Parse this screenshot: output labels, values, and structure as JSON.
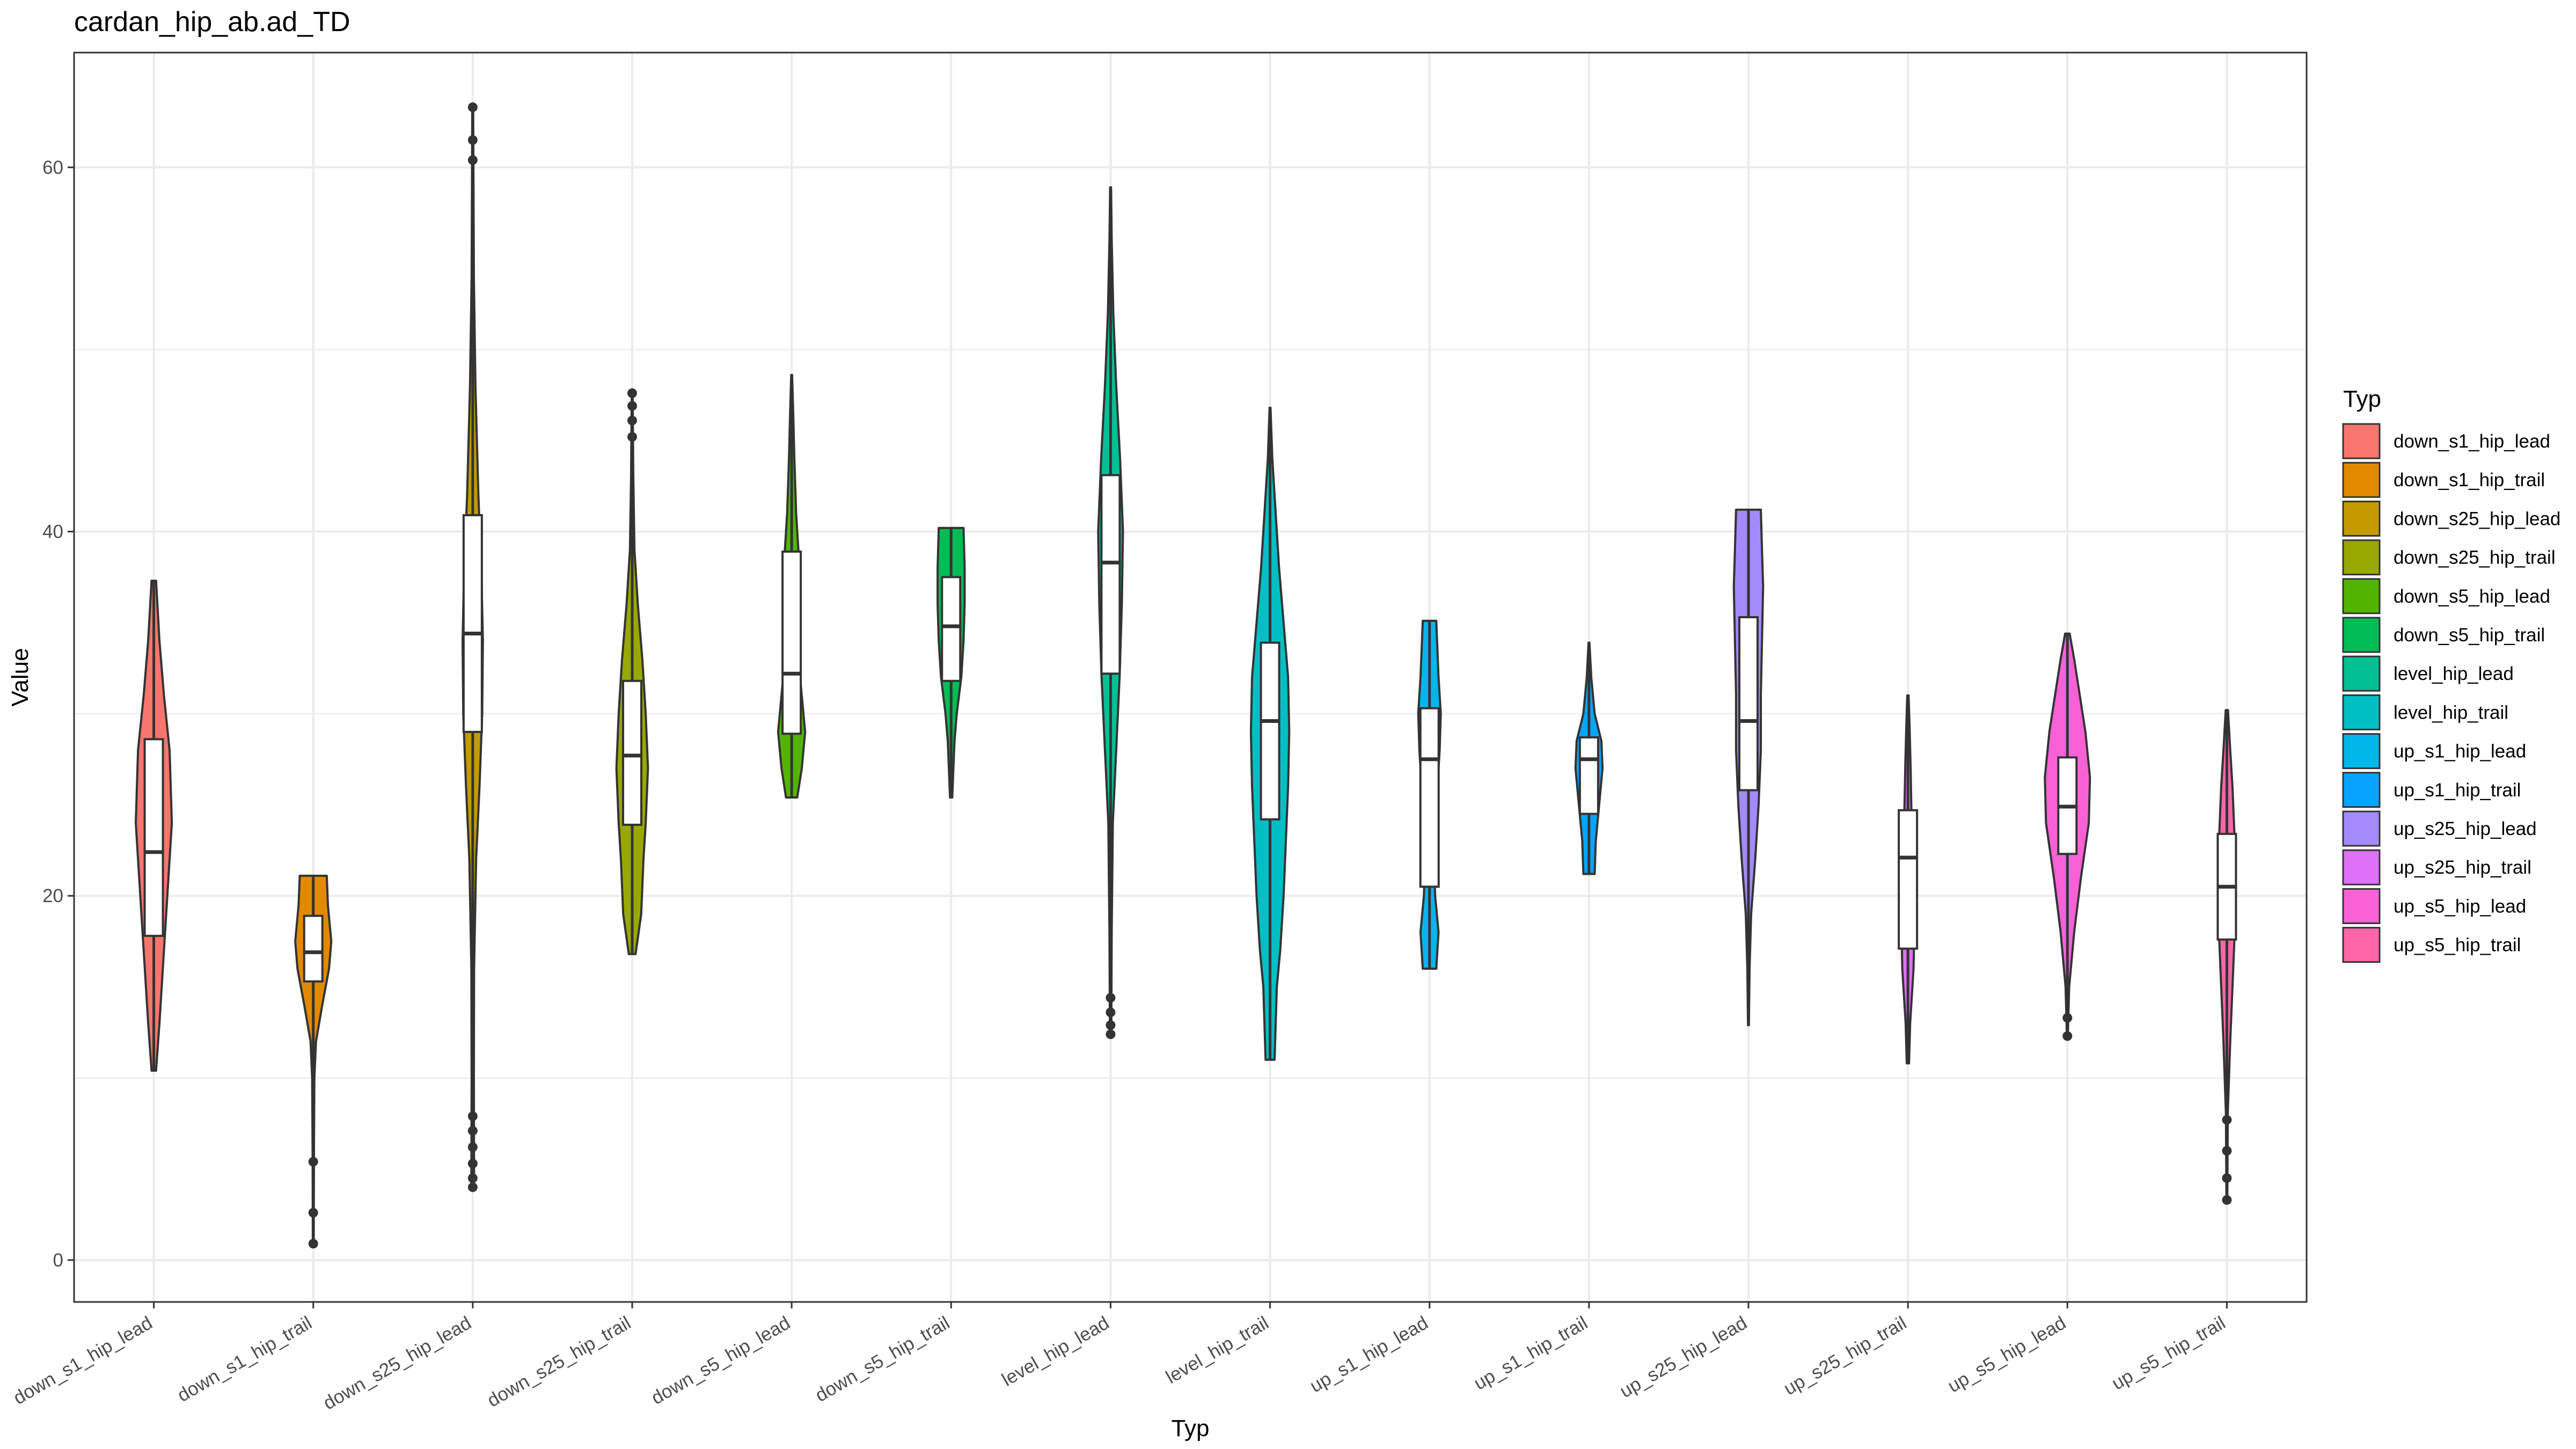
{
  "chart_data": {
    "type": "violin",
    "title": "cardan_hip_ab.ad_TD",
    "xlabel": "Typ",
    "ylabel": "Value",
    "ylim": [
      -2.3,
      66.3
    ],
    "yticks": [
      0,
      20,
      40,
      60
    ],
    "grid": true,
    "legend_title": "Typ",
    "legend_position": "right",
    "categories": [
      "down_s1_hip_lead",
      "down_s1_hip_trail",
      "down_s25_hip_lead",
      "down_s25_hip_trail",
      "down_s5_hip_lead",
      "down_s5_hip_trail",
      "level_hip_lead",
      "level_hip_trail",
      "up_s1_hip_lead",
      "up_s1_hip_trail",
      "up_s25_hip_lead",
      "up_s25_hip_trail",
      "up_s5_hip_lead",
      "up_s5_hip_trail"
    ],
    "colors": [
      "#F8766D",
      "#E38900",
      "#C49A00",
      "#99A800",
      "#53B400",
      "#00BC56",
      "#00C094",
      "#00BFC4",
      "#00B6EB",
      "#06A4FF",
      "#A58AFF",
      "#DF70F8",
      "#FB61D7",
      "#FF66A8"
    ],
    "series": [
      {
        "name": "down_s1_hip_lead",
        "min": 10.4,
        "max": 37.3,
        "q1": 17.8,
        "median": 22.4,
        "q3": 28.6,
        "outliers": [],
        "density": [
          [
            10.4,
            0.1
          ],
          [
            13,
            0.25
          ],
          [
            16,
            0.4
          ],
          [
            20,
            0.6
          ],
          [
            24,
            0.8
          ],
          [
            28,
            0.7
          ],
          [
            31,
            0.45
          ],
          [
            34,
            0.25
          ],
          [
            37.3,
            0.1
          ]
        ]
      },
      {
        "name": "down_s1_hip_trail",
        "min": 0.9,
        "max": 21.1,
        "q1": 15.3,
        "median": 16.9,
        "q3": 18.9,
        "outliers": [
          0.9,
          2.6,
          5.4
        ],
        "density": [
          [
            0.9,
            0.02
          ],
          [
            6,
            0.03
          ],
          [
            10,
            0.05
          ],
          [
            12,
            0.12
          ],
          [
            14,
            0.4
          ],
          [
            16,
            0.7
          ],
          [
            17.5,
            0.8
          ],
          [
            19.5,
            0.65
          ],
          [
            21.1,
            0.6
          ]
        ]
      },
      {
        "name": "down_s25_hip_lead",
        "min": 4.0,
        "max": 63.3,
        "q1": 29.0,
        "median": 34.4,
        "q3": 40.9,
        "outliers": [
          4.0,
          4.5,
          5.3,
          6.2,
          7.1,
          7.9,
          60.4,
          61.5,
          63.3
        ],
        "density": [
          [
            4,
            0.06
          ],
          [
            10,
            0.05
          ],
          [
            16,
            0.06
          ],
          [
            22,
            0.15
          ],
          [
            26,
            0.3
          ],
          [
            30,
            0.42
          ],
          [
            34,
            0.45
          ],
          [
            38,
            0.38
          ],
          [
            42,
            0.25
          ],
          [
            48,
            0.12
          ],
          [
            54,
            0.05
          ],
          [
            63.3,
            0.02
          ]
        ]
      },
      {
        "name": "down_s25_hip_trail",
        "min": 16.8,
        "max": 47.6,
        "q1": 23.9,
        "median": 27.7,
        "q3": 31.8,
        "outliers": [
          45.2,
          46.1,
          46.9,
          47.6
        ],
        "density": [
          [
            16.8,
            0.15
          ],
          [
            19,
            0.4
          ],
          [
            22,
            0.5
          ],
          [
            24,
            0.6
          ],
          [
            27,
            0.7
          ],
          [
            30,
            0.6
          ],
          [
            33,
            0.45
          ],
          [
            36,
            0.25
          ],
          [
            39,
            0.1
          ],
          [
            43,
            0.05
          ],
          [
            47.6,
            0.02
          ]
        ]
      },
      {
        "name": "down_s5_hip_lead",
        "min": 25.4,
        "max": 48.6,
        "q1": 28.9,
        "median": 32.2,
        "q3": 38.9,
        "outliers": [],
        "density": [
          [
            25.4,
            0.25
          ],
          [
            27,
            0.45
          ],
          [
            29,
            0.6
          ],
          [
            31,
            0.45
          ],
          [
            33,
            0.3
          ],
          [
            35,
            0.25
          ],
          [
            37,
            0.3
          ],
          [
            39,
            0.3
          ],
          [
            41,
            0.2
          ],
          [
            44,
            0.12
          ],
          [
            46,
            0.08
          ],
          [
            48.6,
            0.02
          ]
        ]
      },
      {
        "name": "down_s5_hip_trail",
        "min": 25.4,
        "max": 40.2,
        "q1": 31.8,
        "median": 34.8,
        "q3": 37.5,
        "outliers": [],
        "density": [
          [
            25.4,
            0.05
          ],
          [
            27,
            0.1
          ],
          [
            28.5,
            0.15
          ],
          [
            30,
            0.25
          ],
          [
            32,
            0.45
          ],
          [
            34,
            0.55
          ],
          [
            36,
            0.6
          ],
          [
            38,
            0.6
          ],
          [
            40.2,
            0.55
          ]
        ]
      },
      {
        "name": "level_hip_lead",
        "min": 12.4,
        "max": 58.9,
        "q1": 32.2,
        "median": 38.3,
        "q3": 43.1,
        "outliers": [
          12.4,
          12.9,
          13.6,
          14.4
        ],
        "density": [
          [
            12.4,
            0.03
          ],
          [
            18,
            0.05
          ],
          [
            24,
            0.1
          ],
          [
            28,
            0.25
          ],
          [
            32,
            0.4
          ],
          [
            36,
            0.5
          ],
          [
            40,
            0.55
          ],
          [
            44,
            0.42
          ],
          [
            48,
            0.25
          ],
          [
            52,
            0.12
          ],
          [
            56,
            0.05
          ],
          [
            58.9,
            0.02
          ]
        ]
      },
      {
        "name": "level_hip_trail",
        "min": 11.0,
        "max": 46.8,
        "q1": 24.2,
        "median": 29.6,
        "q3": 33.9,
        "outliers": [],
        "density": [
          [
            11,
            0.2
          ],
          [
            13,
            0.25
          ],
          [
            15,
            0.3
          ],
          [
            17,
            0.45
          ],
          [
            20,
            0.6
          ],
          [
            23,
            0.7
          ],
          [
            26,
            0.8
          ],
          [
            29,
            0.85
          ],
          [
            32,
            0.8
          ],
          [
            35,
            0.6
          ],
          [
            38,
            0.4
          ],
          [
            41,
            0.25
          ],
          [
            44,
            0.1
          ],
          [
            46.8,
            0.02
          ]
        ]
      },
      {
        "name": "up_s1_hip_lead",
        "min": 16.0,
        "max": 35.1,
        "q1": 20.5,
        "median": 27.5,
        "q3": 30.3,
        "outliers": [],
        "density": [
          [
            16,
            0.3
          ],
          [
            18,
            0.4
          ],
          [
            20,
            0.25
          ],
          [
            22,
            0.2
          ],
          [
            25,
            0.3
          ],
          [
            28,
            0.45
          ],
          [
            30,
            0.5
          ],
          [
            32,
            0.4
          ],
          [
            35.1,
            0.3
          ]
        ]
      },
      {
        "name": "up_s1_hip_trail",
        "min": 21.2,
        "max": 33.9,
        "q1": 24.5,
        "median": 27.5,
        "q3": 28.7,
        "outliers": [],
        "density": [
          [
            21.2,
            0.25
          ],
          [
            23,
            0.3
          ],
          [
            25,
            0.45
          ],
          [
            27,
            0.6
          ],
          [
            28.5,
            0.55
          ],
          [
            30,
            0.25
          ],
          [
            32,
            0.1
          ],
          [
            33.9,
            0.02
          ]
        ]
      },
      {
        "name": "up_s25_hip_lead",
        "min": 12.9,
        "max": 41.2,
        "q1": 25.8,
        "median": 29.6,
        "q3": 35.3,
        "outliers": [],
        "density": [
          [
            12.9,
            0.02
          ],
          [
            16,
            0.05
          ],
          [
            19,
            0.12
          ],
          [
            22,
            0.3
          ],
          [
            25,
            0.45
          ],
          [
            28,
            0.55
          ],
          [
            31,
            0.55
          ],
          [
            34,
            0.6
          ],
          [
            37,
            0.65
          ],
          [
            39,
            0.6
          ],
          [
            41.2,
            0.55
          ]
        ]
      },
      {
        "name": "up_s25_hip_trail",
        "min": 10.8,
        "max": 31.0,
        "q1": 17.1,
        "median": 22.1,
        "q3": 24.7,
        "outliers": [],
        "density": [
          [
            10.8,
            0.05
          ],
          [
            13,
            0.1
          ],
          [
            16,
            0.25
          ],
          [
            19,
            0.3
          ],
          [
            21,
            0.25
          ],
          [
            23,
            0.2
          ],
          [
            25,
            0.15
          ],
          [
            27,
            0.12
          ],
          [
            29,
            0.08
          ],
          [
            31,
            0.03
          ]
        ]
      },
      {
        "name": "up_s5_hip_lead",
        "min": 12.3,
        "max": 34.4,
        "q1": 22.3,
        "median": 24.9,
        "q3": 27.6,
        "outliers": [
          12.3,
          13.3
        ],
        "density": [
          [
            12.3,
            0.02
          ],
          [
            15,
            0.08
          ],
          [
            18,
            0.3
          ],
          [
            21,
            0.6
          ],
          [
            24,
            0.95
          ],
          [
            26.5,
            1.0
          ],
          [
            29,
            0.8
          ],
          [
            31,
            0.55
          ],
          [
            33,
            0.3
          ],
          [
            34.4,
            0.1
          ]
        ]
      },
      {
        "name": "up_s5_hip_trail",
        "min": 3.3,
        "max": 30.2,
        "q1": 17.6,
        "median": 20.5,
        "q3": 23.4,
        "outliers": [
          3.3,
          4.5,
          6.0,
          7.7
        ],
        "density": [
          [
            3.3,
            0.02
          ],
          [
            8,
            0.04
          ],
          [
            12,
            0.15
          ],
          [
            15,
            0.25
          ],
          [
            18,
            0.35
          ],
          [
            20,
            0.4
          ],
          [
            23,
            0.35
          ],
          [
            26,
            0.25
          ],
          [
            28,
            0.15
          ],
          [
            30.2,
            0.05
          ]
        ]
      }
    ]
  }
}
